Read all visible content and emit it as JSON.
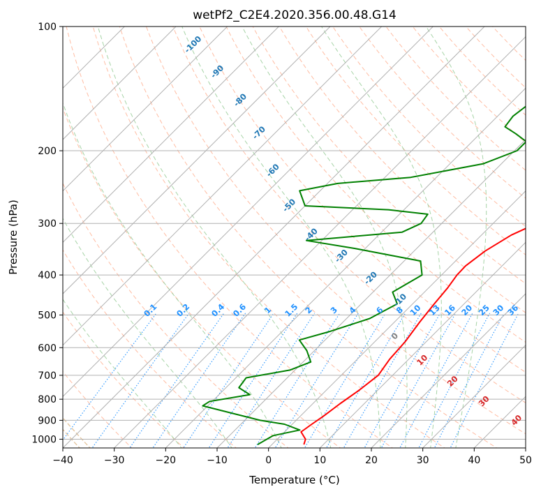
{
  "chart_data": {
    "type": "line",
    "title": "wetPf2_C2E4.2020.356.00.48.G14",
    "xlabel": "Temperature (°C)",
    "ylabel": "Pressure (hPa)",
    "xlim": [
      -40,
      50
    ],
    "ylim": [
      1050,
      100
    ],
    "y_scale": "log",
    "x_ticks": [
      "−40",
      "−30",
      "−20",
      "−10",
      "0",
      "10",
      "20",
      "30",
      "40",
      "50"
    ],
    "x_tick_values": [
      -40,
      -30,
      -20,
      -10,
      0,
      10,
      20,
      30,
      40,
      50
    ],
    "y_ticks": [
      "1000",
      "900",
      "800",
      "700",
      "600",
      "500",
      "400",
      "300",
      "200",
      "100"
    ],
    "y_tick_values": [
      1000,
      900,
      800,
      700,
      600,
      500,
      400,
      300,
      200,
      100
    ],
    "grid": true,
    "skew_degrees": 45,
    "series": [
      {
        "color": "#ff0000",
        "points": [
          [
            6.2,
            1030
          ],
          [
            5.5,
            1000
          ],
          [
            3.2,
            960
          ],
          [
            3.8,
            920
          ],
          [
            4.5,
            880
          ],
          [
            5.3,
            820
          ],
          [
            6.4,
            760
          ],
          [
            7.2,
            700
          ],
          [
            6.3,
            640
          ],
          [
            5.9,
            580
          ],
          [
            4.9,
            520
          ],
          [
            4.2,
            470
          ],
          [
            3.7,
            430
          ],
          [
            3.0,
            400
          ],
          [
            2.9,
            380
          ],
          [
            3.8,
            350
          ],
          [
            5.8,
            320
          ],
          [
            8.5,
            300
          ],
          [
            13.0,
            280
          ],
          [
            14.0,
            265
          ],
          [
            12.5,
            245
          ],
          [
            9.5,
            220
          ],
          [
            7.0,
            200
          ],
          [
            5.5,
            180
          ],
          [
            3.5,
            160
          ],
          [
            2.8,
            140
          ],
          [
            4.0,
            125
          ],
          [
            8.0,
            112
          ],
          [
            12.0,
            100
          ]
        ]
      },
      {
        "color": "#008000",
        "points": [
          [
            -2.8,
            1030
          ],
          [
            -1.5,
            980
          ],
          [
            2.6,
            950
          ],
          [
            -1.5,
            920
          ],
          [
            -7.0,
            900
          ],
          [
            -21.0,
            830
          ],
          [
            -20.5,
            810
          ],
          [
            -14.0,
            780
          ],
          [
            -17.5,
            750
          ],
          [
            -18.0,
            710
          ],
          [
            -11.0,
            680
          ],
          [
            -8.5,
            650
          ],
          [
            -11.5,
            610
          ],
          [
            -15.0,
            575
          ],
          [
            -11.0,
            550
          ],
          [
            -5.5,
            510
          ],
          [
            -3.0,
            470
          ],
          [
            -6.2,
            440
          ],
          [
            -3.8,
            400
          ],
          [
            -6.8,
            370
          ],
          [
            -22.0,
            345
          ],
          [
            -33.0,
            330
          ],
          [
            -16.0,
            315
          ],
          [
            -14.0,
            300
          ],
          [
            -14.5,
            285
          ],
          [
            -23.0,
            278
          ],
          [
            -40.0,
            272
          ],
          [
            -44.0,
            250
          ],
          [
            -38.0,
            240
          ],
          [
            -25.0,
            232
          ],
          [
            -13.5,
            215
          ],
          [
            -9.5,
            200
          ],
          [
            -9.5,
            190
          ],
          [
            -13.0,
            182
          ],
          [
            -16.5,
            175
          ],
          [
            -17.0,
            165
          ],
          [
            -16.0,
            150
          ],
          [
            -13.5,
            135
          ],
          [
            -7.0,
            112
          ],
          [
            -4.0,
            100
          ]
        ]
      }
    ],
    "reference_lines": {
      "isotherms_c": [
        -110,
        -100,
        -90,
        -80,
        -70,
        -60,
        -50,
        -40,
        -30,
        -20,
        -10,
        0,
        10,
        20,
        30,
        40,
        50
      ],
      "dry_adiabats_c": [
        -30,
        -20,
        -10,
        0,
        10,
        20,
        30,
        40,
        50,
        60,
        70,
        80,
        90,
        100,
        110,
        120,
        130,
        140,
        150,
        160,
        170,
        180
      ],
      "moist_adiabats_c": [
        -20,
        -10,
        0,
        10,
        20,
        25,
        30,
        35
      ],
      "mixing_ratios_gkg": [
        0.1,
        0.2,
        0.4,
        0.6,
        1,
        1.5,
        2,
        3,
        4,
        6,
        8,
        10,
        13,
        16,
        20,
        25,
        30,
        36
      ]
    },
    "labels": {
      "wet_bulb_isotherms": [
        "-100",
        "-90",
        "-80",
        "-70",
        "-60",
        "-50",
        "-40",
        "-30",
        "-20",
        "-10"
      ],
      "wet_bulb_isotherm_values": [
        -100,
        -90,
        -80,
        -70,
        -60,
        -50,
        -40,
        -30,
        -20,
        -10
      ],
      "positive_isotherms": [
        "0",
        "10",
        "20",
        "30",
        "40"
      ],
      "positive_isotherm_values": [
        0,
        10,
        20,
        30,
        40
      ],
      "mixing_ratio_labels": [
        "0.1",
        "0.2",
        "0.4",
        "0.6",
        "1",
        "1.5",
        "2",
        "3",
        "4",
        "6",
        "8",
        "10",
        "13",
        "16",
        "20",
        "25",
        "30",
        "36"
      ],
      "colors": {
        "wet_bulb": "#1f77b4",
        "zero": "#808080",
        "positive": "#d62728",
        "mixing_ratio": "#1e90ff"
      }
    },
    "colors": {
      "isotherm": "#b0b0b0",
      "dry_adiabat": "#ffa07a",
      "moist_adiabat": "#90c890",
      "mixing_ratio": "#1e90ff",
      "outer_adiabat": "#deb887"
    }
  }
}
